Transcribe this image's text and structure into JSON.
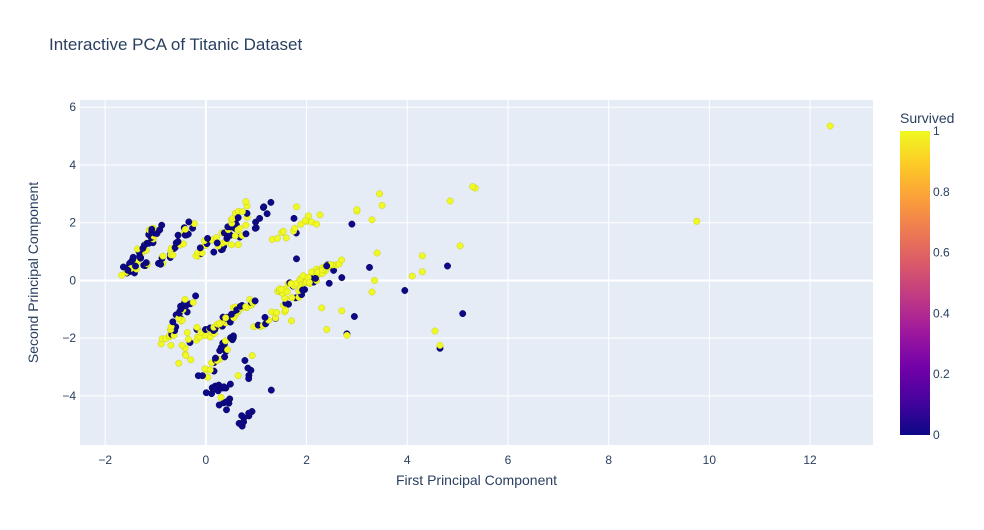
{
  "chart_data": {
    "type": "scatter",
    "title": "Interactive PCA of Titanic Dataset",
    "xlabel": "First Principal Component",
    "ylabel": "Second Principal Component",
    "xlim": [
      -2.5,
      13.25
    ],
    "ylim": [
      -5.7,
      6.25
    ],
    "xticks": [
      -2,
      0,
      2,
      4,
      6,
      8,
      10,
      12
    ],
    "yticks": [
      -4,
      -2,
      0,
      2,
      4,
      6
    ],
    "grid": true,
    "colorbar": {
      "title": "Survived",
      "range": [
        0,
        1
      ],
      "ticks": [
        "0",
        "0.2",
        "0.4",
        "0.6",
        "0.8",
        "1"
      ],
      "colorscale": [
        "#0d0887",
        "#46039f",
        "#7201a8",
        "#9c179e",
        "#bd3786",
        "#d8576b",
        "#ed7953",
        "#fb9f3a",
        "#fdca26",
        "#f0f921"
      ]
    },
    "colors": {
      "not_survived": "#0d0887",
      "survived": "#f0f921",
      "plot_bg": "#e5ecf6",
      "grid": "#ffffff"
    },
    "clusters": [
      {
        "kind": "line",
        "from": [
          -1.6,
          0.3
        ],
        "to": [
          -0.95,
          1.85
        ],
        "n": 40,
        "survived_frac": 0.3
      },
      {
        "kind": "line",
        "from": [
          -1.6,
          0.2
        ],
        "to": [
          -1.1,
          0.7
        ],
        "n": 15,
        "survived_frac": 0.55
      },
      {
        "kind": "line",
        "from": [
          -0.9,
          0.55
        ],
        "to": [
          -0.3,
          1.95
        ],
        "n": 30,
        "survived_frac": 0.45
      },
      {
        "kind": "line",
        "from": [
          -0.2,
          0.8
        ],
        "to": [
          0.15,
          1.5
        ],
        "n": 12,
        "survived_frac": 0.5
      },
      {
        "kind": "line",
        "from": [
          0.2,
          1.0
        ],
        "to": [
          0.65,
          2.3
        ],
        "n": 28,
        "survived_frac": 0.45
      },
      {
        "kind": "line",
        "from": [
          0.6,
          1.2
        ],
        "to": [
          0.8,
          2.7
        ],
        "n": 14,
        "survived_frac": 0.6
      },
      {
        "kind": "line",
        "from": [
          0.9,
          1.6
        ],
        "to": [
          1.2,
          2.6
        ],
        "n": 8,
        "survived_frac": 0.2
      },
      {
        "kind": "line",
        "from": [
          1.4,
          1.4
        ],
        "to": [
          2.2,
          2.2
        ],
        "n": 14,
        "survived_frac": 0.8
      },
      {
        "kind": "line",
        "from": [
          1.4,
          -0.4
        ],
        "to": [
          2.5,
          0.5
        ],
        "n": 40,
        "survived_frac": 0.85
      },
      {
        "kind": "line",
        "from": [
          1.0,
          -1.7
        ],
        "to": [
          2.6,
          0.7
        ],
        "n": 45,
        "survived_frac": 0.7
      },
      {
        "kind": "line",
        "from": [
          -0.8,
          -2.2
        ],
        "to": [
          -0.3,
          -0.6
        ],
        "n": 35,
        "survived_frac": 0.35
      },
      {
        "kind": "line",
        "from": [
          -0.5,
          -2.8
        ],
        "to": [
          -0.2,
          -1.6
        ],
        "n": 10,
        "survived_frac": 0.9
      },
      {
        "kind": "line",
        "from": [
          -0.1,
          -2.0
        ],
        "to": [
          0.9,
          -0.7
        ],
        "n": 55,
        "survived_frac": 0.6
      },
      {
        "kind": "line",
        "from": [
          0.0,
          -3.3
        ],
        "to": [
          0.55,
          -1.9
        ],
        "n": 25,
        "survived_frac": 0.25
      },
      {
        "kind": "line",
        "from": [
          0.05,
          -3.9
        ],
        "to": [
          0.45,
          -3.6
        ],
        "n": 14,
        "survived_frac": 0.0
      },
      {
        "kind": "line",
        "from": [
          0.35,
          -4.4
        ],
        "to": [
          0.45,
          -4.1
        ],
        "n": 6,
        "survived_frac": 0.0
      },
      {
        "kind": "line",
        "from": [
          0.7,
          -5.0
        ],
        "to": [
          0.85,
          -4.5
        ],
        "n": 6,
        "survived_frac": 0.0
      },
      {
        "kind": "line",
        "from": [
          0.75,
          -3.3
        ],
        "to": [
          0.85,
          -2.7
        ],
        "n": 6,
        "survived_frac": 0.4
      }
    ],
    "extra_points": [
      {
        "x": 12.4,
        "y": 5.35,
        "survived": 1
      },
      {
        "x": 9.75,
        "y": 2.05,
        "survived": 1
      },
      {
        "x": 5.35,
        "y": 3.2,
        "survived": 1
      },
      {
        "x": 5.3,
        "y": 3.25,
        "survived": 1
      },
      {
        "x": 4.85,
        "y": 2.75,
        "survived": 1
      },
      {
        "x": 5.05,
        "y": 1.2,
        "survived": 1
      },
      {
        "x": 5.1,
        "y": -1.15,
        "survived": 0
      },
      {
        "x": 4.8,
        "y": 0.5,
        "survived": 0
      },
      {
        "x": 4.65,
        "y": -2.35,
        "survived": 0
      },
      {
        "x": 4.65,
        "y": -2.25,
        "survived": 1
      },
      {
        "x": 4.55,
        "y": -1.75,
        "survived": 1
      },
      {
        "x": 4.3,
        "y": 0.85,
        "survived": 1
      },
      {
        "x": 4.3,
        "y": 0.3,
        "survived": 1
      },
      {
        "x": 4.1,
        "y": 0.15,
        "survived": 1
      },
      {
        "x": 3.95,
        "y": -0.35,
        "survived": 0
      },
      {
        "x": 3.45,
        "y": 3.0,
        "survived": 1
      },
      {
        "x": 3.5,
        "y": 2.6,
        "survived": 1
      },
      {
        "x": 3.3,
        "y": 2.1,
        "survived": 1
      },
      {
        "x": 3.4,
        "y": 0.95,
        "survived": 1
      },
      {
        "x": 3.25,
        "y": 0.45,
        "survived": 0
      },
      {
        "x": 3.35,
        "y": 0.0,
        "survived": 1
      },
      {
        "x": 3.3,
        "y": -0.4,
        "survived": 1
      },
      {
        "x": 3.0,
        "y": 2.4,
        "survived": 1
      },
      {
        "x": 3.0,
        "y": 2.45,
        "survived": 1
      },
      {
        "x": 2.9,
        "y": 1.95,
        "survived": 0
      },
      {
        "x": 2.95,
        "y": -1.25,
        "survived": 0
      },
      {
        "x": 2.8,
        "y": -1.85,
        "survived": 0
      },
      {
        "x": 2.8,
        "y": -1.9,
        "survived": 1
      },
      {
        "x": 2.7,
        "y": 0.1,
        "survived": 0
      },
      {
        "x": 2.7,
        "y": -1.05,
        "survived": 1
      },
      {
        "x": 2.4,
        "y": 0.5,
        "survived": 0
      },
      {
        "x": 2.45,
        "y": -0.1,
        "survived": 0
      },
      {
        "x": 2.4,
        "y": -1.7,
        "survived": 1
      },
      {
        "x": 2.2,
        "y": 1.95,
        "survived": 1
      },
      {
        "x": 2.3,
        "y": -0.95,
        "survived": 1
      },
      {
        "x": 1.8,
        "y": 2.55,
        "survived": 1
      },
      {
        "x": 1.75,
        "y": 2.15,
        "survived": 0
      },
      {
        "x": 1.8,
        "y": 0.75,
        "survived": 0
      },
      {
        "x": 1.7,
        "y": -1.4,
        "survived": 1
      },
      {
        "x": 1.3,
        "y": -3.8,
        "survived": 0
      },
      {
        "x": 1.15,
        "y": 2.55,
        "survived": 0
      },
      {
        "x": 0.85,
        "y": -4.6,
        "survived": 0
      },
      {
        "x": 0.75,
        "y": -4.9,
        "survived": 0
      },
      {
        "x": 0.85,
        "y": -3.4,
        "survived": 0
      },
      {
        "x": 0.3,
        "y": -4.05,
        "survived": 1
      },
      {
        "x": -0.3,
        "y": -2.75,
        "survived": 1
      },
      {
        "x": -0.15,
        "y": -3.3,
        "survived": 0
      },
      {
        "x": -1.55,
        "y": 0.35,
        "survived": 0
      }
    ]
  }
}
